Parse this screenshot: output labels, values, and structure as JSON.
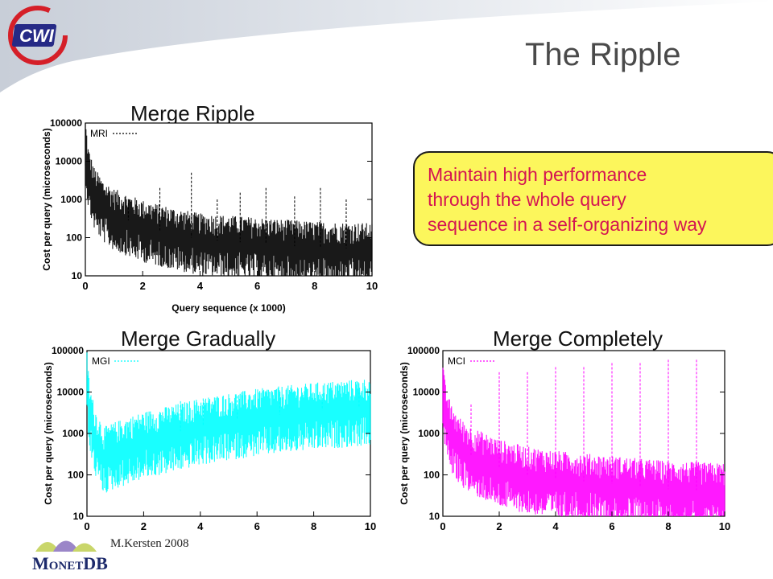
{
  "slide": {
    "title": "The Ripple",
    "logo_top": "CWI",
    "logo_bottom": "MonetDB",
    "footer": "M.Kersten 2008",
    "callout": [
      "Maintain high performance",
      "through the whole query",
      "sequence in a self-organizing way"
    ],
    "colors": {
      "callout_bg": "#fcf65c",
      "callout_text": "#d41452",
      "title": "#4a4a4a"
    }
  },
  "chart_data": [
    {
      "type": "line",
      "title": "Merge Ripple",
      "xlabel": "Query sequence (x 1000)",
      "ylabel": "Cost per query (microseconds)",
      "legend": "MRI",
      "color": "#000000",
      "y_scale": "log",
      "xlim": [
        0,
        10
      ],
      "ylim": [
        10,
        100000
      ],
      "x_ticks": [
        "0",
        "2",
        "4",
        "6",
        "8",
        "10"
      ],
      "y_ticks": [
        "10",
        "100",
        "1000",
        "10000",
        "100000"
      ],
      "profile_x": [
        0,
        0.1,
        0.3,
        0.6,
        1,
        2,
        3,
        4,
        6,
        8,
        10
      ],
      "profile_y": [
        30000,
        5000,
        1500,
        700,
        400,
        200,
        130,
        90,
        70,
        55,
        50
      ],
      "spikes": [
        [
          1.5,
          800
        ],
        [
          2.6,
          2000
        ],
        [
          3.7,
          5000
        ],
        [
          4.6,
          1000
        ],
        [
          5.4,
          1500
        ],
        [
          6.3,
          2000
        ],
        [
          7.3,
          1200
        ],
        [
          8.2,
          2000
        ],
        [
          9.1,
          1000
        ]
      ]
    },
    {
      "type": "line",
      "title": "Merge Gradually",
      "xlabel": "",
      "ylabel": "Cost per query (microseconds)",
      "legend": "MGI",
      "color": "#00ffff",
      "y_scale": "log",
      "xlim": [
        0,
        10
      ],
      "ylim": [
        10,
        100000
      ],
      "x_ticks": [
        "0",
        "2",
        "4",
        "6",
        "8",
        "10"
      ],
      "y_ticks": [
        "10",
        "100",
        "1000",
        "10000",
        "100000"
      ],
      "profile_x": [
        0,
        0.1,
        0.3,
        0.6,
        1,
        2,
        3,
        4,
        6,
        8,
        10
      ],
      "profile_y": [
        20000,
        3000,
        800,
        300,
        400,
        700,
        1000,
        1500,
        2500,
        3500,
        4500
      ],
      "spikes": [
        [
          3.3,
          6000
        ],
        [
          4.1,
          7000
        ],
        [
          5.3,
          8000
        ],
        [
          6.8,
          9000
        ],
        [
          8.3,
          9000
        ],
        [
          9.6,
          10000
        ]
      ]
    },
    {
      "type": "line",
      "title": "Merge Completely",
      "xlabel": "",
      "ylabel": "Cost per query (microseconds)",
      "legend": "MCI",
      "color": "#ff00ff",
      "y_scale": "log",
      "xlim": [
        0,
        10
      ],
      "ylim": [
        10,
        100000
      ],
      "x_ticks": [
        "0",
        "2",
        "4",
        "6",
        "8",
        "10"
      ],
      "y_ticks": [
        "10",
        "100",
        "1000",
        "10000",
        "100000"
      ],
      "profile_x": [
        0,
        0.1,
        0.3,
        0.6,
        1,
        2,
        3,
        4,
        6,
        8,
        10
      ],
      "profile_y": [
        10000,
        3000,
        1000,
        500,
        300,
        150,
        100,
        80,
        60,
        45,
        40
      ],
      "spikes": [
        [
          1.0,
          5000
        ],
        [
          2.0,
          30000
        ],
        [
          3.0,
          30000
        ],
        [
          4.0,
          40000
        ],
        [
          5.0,
          40000
        ],
        [
          6.0,
          50000
        ],
        [
          7.0,
          50000
        ],
        [
          8.0,
          60000
        ],
        [
          9.0,
          60000
        ]
      ]
    }
  ]
}
